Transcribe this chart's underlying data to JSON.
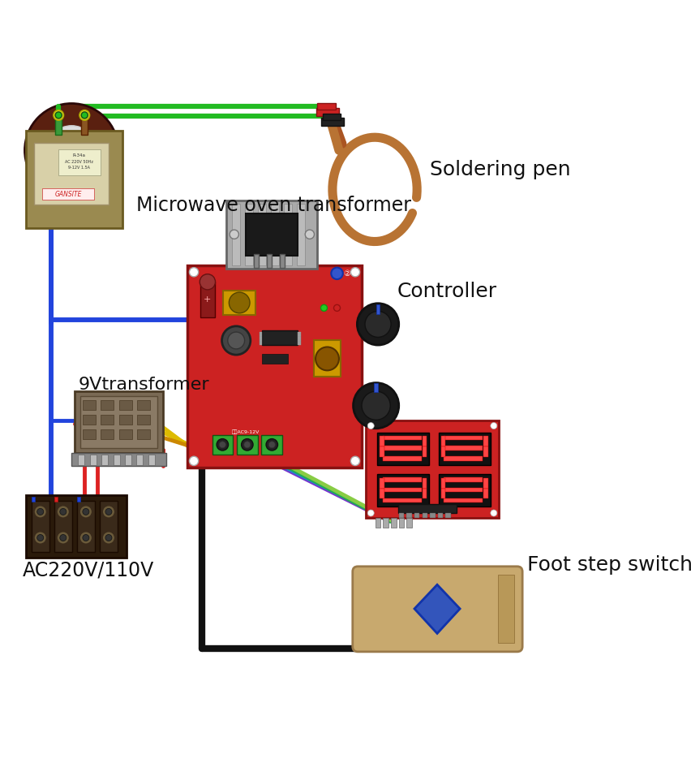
{
  "background_color": "#ffffff",
  "labels": {
    "soldering_pen": "Soldering pen",
    "microwave_transformer": "Microwave oven transformer",
    "controller": "Controller",
    "transformer_9v": "9Vtransformer",
    "ac_power": "AC220V/110V",
    "foot_switch": "Foot step switch"
  },
  "wire_colors": {
    "green": "#22bb22",
    "blue": "#2244dd",
    "black": "#111111",
    "red": "#dd2222",
    "yellow": "#ddbb00",
    "red2": "#cc3333"
  },
  "positions": {
    "transformer": [
      30,
      35,
      170,
      200
    ],
    "soldering_pen": [
      480,
      30,
      170,
      200
    ],
    "controller_board": [
      290,
      290,
      270,
      310
    ],
    "transformer_9v": [
      120,
      490,
      130,
      90
    ],
    "ac_block": [
      40,
      650,
      155,
      90
    ],
    "display": [
      565,
      535,
      200,
      145
    ],
    "foot_switch": [
      555,
      770,
      235,
      105
    ]
  }
}
